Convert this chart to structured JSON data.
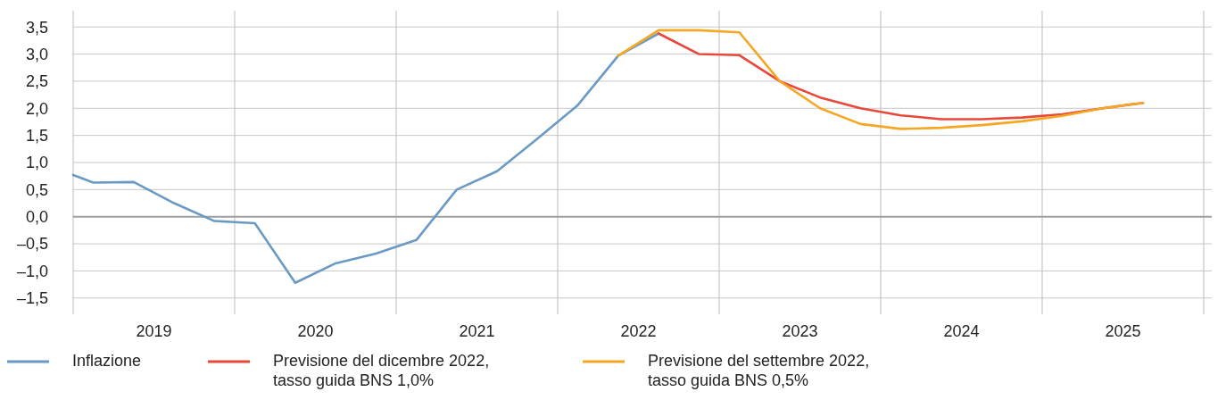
{
  "chart_data": {
    "type": "line",
    "xlim": [
      2019,
      2026.05
    ],
    "xticks": [
      {
        "value": 2019,
        "label": null
      },
      {
        "value": 2019.5,
        "label": "2019"
      },
      {
        "value": 2020,
        "label": null
      },
      {
        "value": 2020.5,
        "label": "2020"
      },
      {
        "value": 2021,
        "label": null
      },
      {
        "value": 2021.5,
        "label": "2021"
      },
      {
        "value": 2022,
        "label": null
      },
      {
        "value": 2022.5,
        "label": "2022"
      },
      {
        "value": 2023,
        "label": null
      },
      {
        "value": 2023.5,
        "label": "2023"
      },
      {
        "value": 2024,
        "label": null
      },
      {
        "value": 2024.5,
        "label": "2024"
      },
      {
        "value": 2025,
        "label": null
      },
      {
        "value": 2025.5,
        "label": "2025"
      },
      {
        "value": 2026,
        "label": null
      }
    ],
    "ylim": [
      -1.8,
      3.8
    ],
    "yticks": [
      {
        "value": -1.5,
        "label": "–1,5"
      },
      {
        "value": -1,
        "label": "–1,0"
      },
      {
        "value": -0.5,
        "label": "–0,5"
      },
      {
        "value": 0,
        "label": "0,0"
      },
      {
        "value": 0.5,
        "label": "0,5"
      },
      {
        "value": 1,
        "label": "1,0"
      },
      {
        "value": 1.5,
        "label": "1,5"
      },
      {
        "value": 2,
        "label": "2,0"
      },
      {
        "value": 2.5,
        "label": "2,5"
      },
      {
        "value": 3,
        "label": "3,0"
      },
      {
        "value": 3.5,
        "label": "3,5"
      }
    ],
    "grid": true,
    "legend": "bottom",
    "ref_lines": [
      {
        "axis": "y",
        "value": 0,
        "color": "#a0a0a0"
      }
    ],
    "series": [
      {
        "name": "Inflazione",
        "color": "#6a9ac4",
        "x": [
          2019,
          2019.125,
          2019.375,
          2019.625,
          2019.875,
          2020.125,
          2020.375,
          2020.625,
          2020.875,
          2021.125,
          2021.375,
          2021.625,
          2021.875,
          2022.125,
          2022.375,
          2022.625
        ],
        "values": [
          0.77,
          0.63,
          0.64,
          0.25,
          -0.08,
          -0.12,
          -1.22,
          -0.86,
          -0.68,
          -0.43,
          0.5,
          0.84,
          1.44,
          2.06,
          2.97,
          3.38
        ]
      },
      {
        "name": "Previsione del dicembre 2022, tasso guida BNS 1,0%",
        "color": "#e8473a",
        "x": [
          2022.625,
          2022.875,
          2023.125,
          2023.375,
          2023.625,
          2023.875,
          2024.125,
          2024.375,
          2024.625,
          2024.875,
          2025.125,
          2025.375,
          2025.625
        ],
        "values": [
          3.38,
          3.0,
          2.98,
          2.5,
          2.2,
          2.0,
          1.87,
          1.8,
          1.8,
          1.83,
          1.89,
          2.0,
          2.1
        ]
      },
      {
        "name": "Previsione del settembre 2022, tasso guida BNS 0,5%",
        "color": "#f5a623",
        "x": [
          2022.375,
          2022.625,
          2022.875,
          2023.125,
          2023.375,
          2023.625,
          2023.875,
          2024.125,
          2024.375,
          2024.625,
          2024.875,
          2025.125,
          2025.375,
          2025.625
        ],
        "values": [
          2.97,
          3.44,
          3.44,
          3.4,
          2.5,
          2.0,
          1.71,
          1.62,
          1.64,
          1.69,
          1.76,
          1.86,
          2.0,
          2.1
        ]
      }
    ]
  }
}
